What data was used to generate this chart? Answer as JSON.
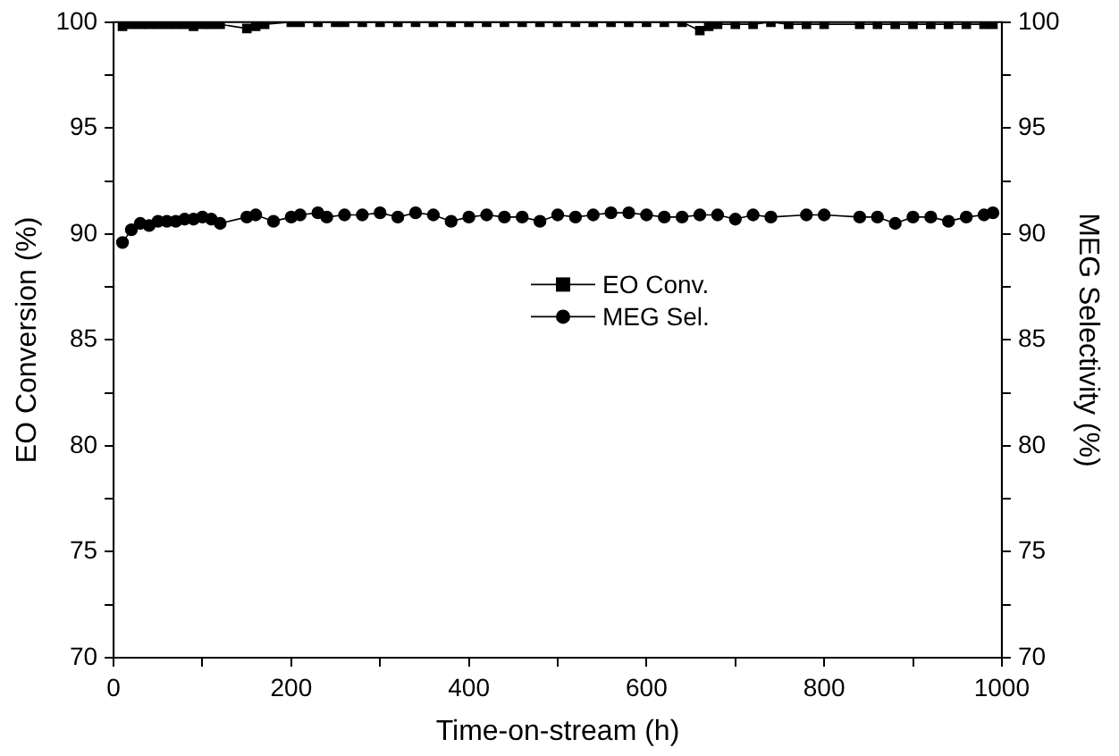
{
  "chart_data": {
    "type": "line",
    "xlabel": "Time-on-stream (h)",
    "ylabel": "EO Conversion (%)",
    "y2label": "MEG Selectivity (%)",
    "xlim": [
      0,
      1000
    ],
    "xticks": [
      0,
      {
        "value": 100,
        "label": null
      },
      200,
      {
        "value": 300,
        "label": null
      },
      400,
      {
        "value": 500,
        "label": null
      },
      600,
      {
        "value": 700,
        "label": null
      },
      800,
      {
        "value": 900,
        "label": null
      },
      1000
    ],
    "ylim": [
      70,
      100
    ],
    "yticks": [
      70,
      {
        "value": 72.5,
        "label": null
      },
      75,
      {
        "value": 77.5,
        "label": null
      },
      80,
      {
        "value": 82.5,
        "label": null
      },
      85,
      {
        "value": 87.5,
        "label": null
      },
      90,
      {
        "value": 92.5,
        "label": null
      },
      95,
      {
        "value": 97.5,
        "label": null
      },
      100
    ],
    "y2lim": [
      70,
      100
    ],
    "y2ticks": [
      70,
      {
        "value": 72.5,
        "label": null
      },
      75,
      {
        "value": 77.5,
        "label": null
      },
      80,
      {
        "value": 82.5,
        "label": null
      },
      85,
      {
        "value": 87.5,
        "label": null
      },
      90,
      {
        "value": 92.5,
        "label": null
      },
      95,
      {
        "value": 97.5,
        "label": null
      },
      100
    ],
    "grid": false,
    "legend": "center",
    "line_style": "solid",
    "series": [
      {
        "name": "EO Conv.",
        "color": "#000000",
        "marker": "square",
        "x": [
          10,
          20,
          30,
          40,
          50,
          60,
          70,
          80,
          90,
          100,
          110,
          120,
          150,
          160,
          170,
          200,
          210,
          230,
          250,
          260,
          280,
          300,
          320,
          340,
          360,
          380,
          400,
          420,
          440,
          460,
          480,
          500,
          520,
          540,
          560,
          580,
          600,
          620,
          640,
          660,
          670,
          680,
          700,
          720,
          740,
          760,
          780,
          800,
          840,
          860,
          880,
          900,
          920,
          940,
          960,
          980,
          990
        ],
        "values": [
          99.8,
          99.9,
          99.9,
          99.9,
          99.9,
          99.9,
          99.9,
          99.9,
          99.8,
          99.9,
          99.9,
          99.9,
          99.7,
          99.8,
          99.9,
          100,
          100,
          100,
          100,
          100,
          100,
          100,
          100,
          100,
          100,
          100,
          100,
          100,
          100,
          100,
          100,
          100,
          100,
          100,
          100,
          100,
          100,
          100,
          100,
          99.6,
          99.8,
          99.9,
          99.9,
          99.9,
          100,
          99.9,
          99.9,
          99.9,
          99.9,
          99.9,
          99.9,
          99.9,
          99.9,
          99.9,
          99.9,
          99.9,
          99.9
        ]
      },
      {
        "name": "MEG Sel.",
        "color": "#000000",
        "marker": "circle",
        "axis": "y2",
        "x": [
          10,
          20,
          30,
          40,
          50,
          60,
          70,
          80,
          90,
          100,
          110,
          120,
          150,
          160,
          180,
          200,
          210,
          230,
          240,
          260,
          280,
          300,
          320,
          340,
          360,
          380,
          400,
          420,
          440,
          460,
          480,
          500,
          520,
          540,
          560,
          580,
          600,
          620,
          640,
          660,
          680,
          700,
          720,
          740,
          780,
          800,
          840,
          860,
          880,
          900,
          920,
          940,
          960,
          980,
          990
        ],
        "values": [
          89.6,
          90.2,
          90.5,
          90.4,
          90.6,
          90.6,
          90.6,
          90.7,
          90.7,
          90.8,
          90.7,
          90.5,
          90.8,
          90.9,
          90.6,
          90.8,
          90.9,
          91.0,
          90.8,
          90.9,
          90.9,
          91.0,
          90.8,
          91.0,
          90.9,
          90.6,
          90.8,
          90.9,
          90.8,
          90.8,
          90.6,
          90.9,
          90.8,
          90.9,
          91.0,
          91.0,
          90.9,
          90.8,
          90.8,
          90.9,
          90.9,
          90.7,
          90.9,
          90.8,
          90.9,
          90.9,
          90.8,
          90.8,
          90.5,
          90.8,
          90.8,
          90.6,
          90.8,
          90.9,
          91.0
        ]
      }
    ]
  }
}
